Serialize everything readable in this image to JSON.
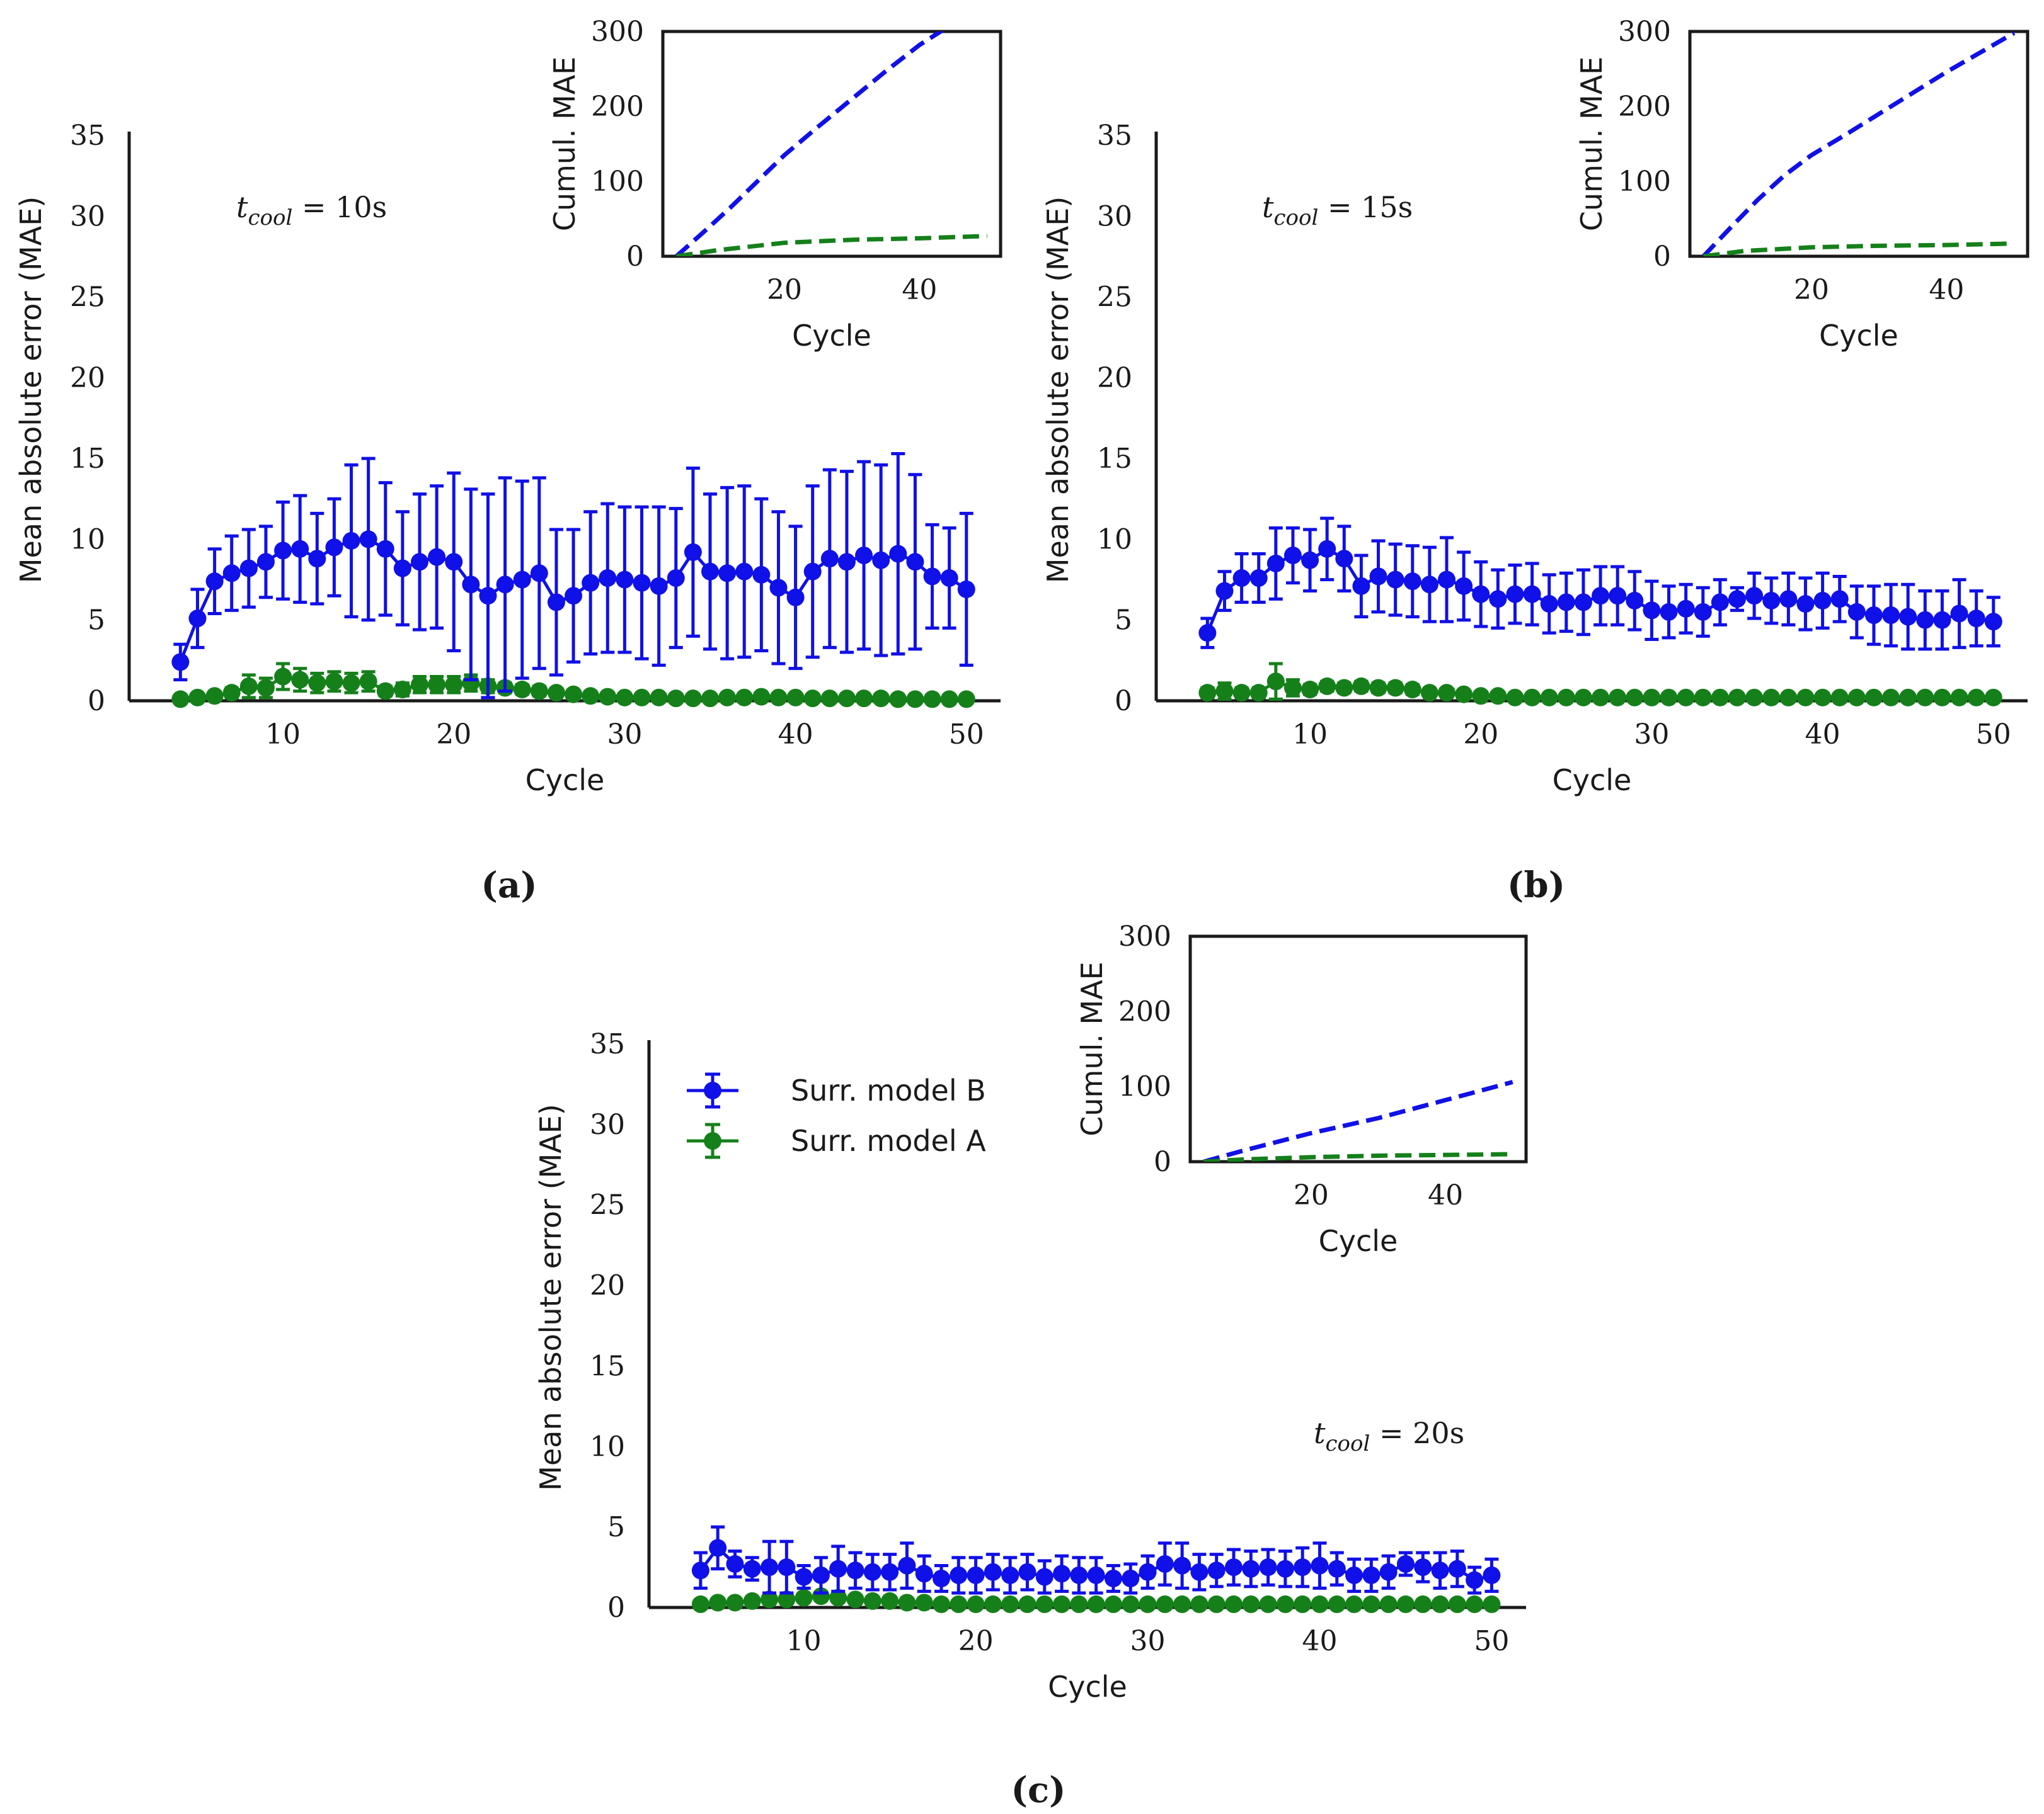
{
  "figure": {
    "panel_labels": [
      "(a)",
      "(b)",
      "(c)"
    ]
  },
  "legend": {
    "entries": [
      {
        "label": "Surr. model B",
        "color": "#1010e8"
      },
      {
        "label": "Surr. model A",
        "color": "#15801a"
      }
    ]
  },
  "chart_data": [
    {
      "panel": "(a)",
      "type": "line",
      "annotation": "t_cool = 10s",
      "xlabel": "Cycle",
      "ylabel": "Mean absolute error (MAE)",
      "xlim": [
        1,
        52
      ],
      "ylim": [
        0,
        35
      ],
      "xticks": [
        10,
        20,
        30,
        40,
        50
      ],
      "yticks": [
        0,
        5,
        10,
        15,
        20,
        25,
        30,
        35
      ],
      "x": [
        4,
        5,
        6,
        7,
        8,
        9,
        10,
        11,
        12,
        13,
        14,
        15,
        16,
        17,
        18,
        19,
        20,
        21,
        22,
        23,
        24,
        25,
        26,
        27,
        28,
        29,
        30,
        31,
        32,
        33,
        34,
        35,
        36,
        37,
        38,
        39,
        40,
        41,
        42,
        43,
        44,
        45,
        46,
        47,
        48,
        49,
        50
      ],
      "series": [
        {
          "name": "Surr. model B",
          "color": "#1010e8",
          "values": [
            2.4,
            5.1,
            7.4,
            7.9,
            8.2,
            8.6,
            9.3,
            9.4,
            8.8,
            9.5,
            9.9,
            10.0,
            9.4,
            8.2,
            8.6,
            8.9,
            8.6,
            7.2,
            6.5,
            7.2,
            7.5,
            7.9,
            6.1,
            6.5,
            7.3,
            7.6,
            7.5,
            7.3,
            7.1,
            7.6,
            9.2,
            8.0,
            7.9,
            8.0,
            7.8,
            7.0,
            6.4,
            8.0,
            8.8,
            8.6,
            9.0,
            8.7,
            9.1,
            8.6,
            7.7,
            7.6,
            6.9
          ],
          "errors": [
            1.1,
            1.8,
            2.0,
            2.3,
            2.4,
            2.2,
            3.0,
            3.3,
            2.8,
            3.0,
            4.7,
            5.0,
            4.1,
            3.5,
            4.2,
            4.4,
            5.5,
            5.9,
            6.3,
            6.6,
            6.1,
            5.9,
            4.5,
            4.1,
            4.4,
            4.6,
            4.5,
            4.7,
            4.9,
            4.3,
            5.2,
            4.8,
            5.3,
            5.3,
            4.7,
            4.7,
            4.4,
            5.3,
            5.5,
            5.6,
            5.8,
            5.9,
            6.2,
            5.4,
            3.2,
            3.1,
            4.7
          ]
        },
        {
          "name": "Surr. model A",
          "color": "#15801a",
          "values": [
            0.1,
            0.2,
            0.3,
            0.5,
            0.9,
            0.8,
            1.5,
            1.3,
            1.1,
            1.2,
            1.1,
            1.2,
            0.6,
            0.7,
            1.0,
            1.0,
            1.0,
            1.1,
            0.9,
            0.8,
            0.7,
            0.6,
            0.5,
            0.4,
            0.3,
            0.25,
            0.2,
            0.2,
            0.2,
            0.15,
            0.15,
            0.15,
            0.2,
            0.2,
            0.25,
            0.2,
            0.2,
            0.15,
            0.15,
            0.15,
            0.15,
            0.15,
            0.1,
            0.1,
            0.1,
            0.1,
            0.1
          ],
          "errors": [
            0.1,
            0.2,
            0.2,
            0.3,
            0.7,
            0.6,
            0.8,
            0.7,
            0.6,
            0.6,
            0.6,
            0.6,
            0.3,
            0.4,
            0.5,
            0.5,
            0.5,
            0.5,
            0.4,
            0.3,
            0.3,
            0.3,
            0.2,
            0.2,
            0.15,
            0.1,
            0.1,
            0.1,
            0.1,
            0.1,
            0.1,
            0.1,
            0.1,
            0.1,
            0.1,
            0.1,
            0.1,
            0.1,
            0.1,
            0.1,
            0.1,
            0.1,
            0.05,
            0.05,
            0.05,
            0.05,
            0.05
          ]
        }
      ],
      "inset": {
        "type": "line",
        "xlabel": "Cycle",
        "ylabel": "Cumul. MAE",
        "xlim": [
          2,
          52
        ],
        "ylim": [
          0,
          300
        ],
        "xticks": [
          20,
          40
        ],
        "yticks": [
          0,
          100,
          200,
          300
        ],
        "series": [
          {
            "name": "Surr. model B",
            "color": "#1010e8",
            "style": "dashed",
            "x": [
              4,
              8,
              12,
              16,
              20,
              25,
              30,
              35,
              40,
              44
            ],
            "values": [
              0,
              32,
              65,
              100,
              135,
              173,
              210,
              247,
              282,
              305
            ]
          },
          {
            "name": "Surr. model A",
            "color": "#15801a",
            "style": "dashed",
            "x": [
              4,
              10,
              20,
              30,
              40,
              50
            ],
            "values": [
              0,
              8,
              18,
              22,
              24,
              27
            ]
          }
        ]
      }
    },
    {
      "panel": "(b)",
      "type": "line",
      "annotation": "t_cool = 15s",
      "xlabel": "Cycle",
      "ylabel": "Mean absolute error (MAE)",
      "xlim": [
        1,
        52
      ],
      "ylim": [
        0,
        35
      ],
      "xticks": [
        10,
        20,
        30,
        40,
        50
      ],
      "yticks": [
        0,
        5,
        10,
        15,
        20,
        25,
        30,
        35
      ],
      "x": [
        4,
        5,
        6,
        7,
        8,
        9,
        10,
        11,
        12,
        13,
        14,
        15,
        16,
        17,
        18,
        19,
        20,
        21,
        22,
        23,
        24,
        25,
        26,
        27,
        28,
        29,
        30,
        31,
        32,
        33,
        34,
        35,
        36,
        37,
        38,
        39,
        40,
        41,
        42,
        43,
        44,
        45,
        46,
        47,
        48,
        49,
        50
      ],
      "series": [
        {
          "name": "Surr. model B",
          "color": "#1010e8",
          "values": [
            4.2,
            6.8,
            7.6,
            7.6,
            8.5,
            9.0,
            8.7,
            9.4,
            8.8,
            7.1,
            7.7,
            7.5,
            7.4,
            7.2,
            7.5,
            7.1,
            6.6,
            6.3,
            6.6,
            6.6,
            6.0,
            6.1,
            6.1,
            6.5,
            6.5,
            6.2,
            5.6,
            5.5,
            5.7,
            5.5,
            6.1,
            6.3,
            6.5,
            6.2,
            6.3,
            6.0,
            6.2,
            6.3,
            5.5,
            5.3,
            5.3,
            5.2,
            5.0,
            5.0,
            5.4,
            5.1,
            4.9
          ],
          "errors": [
            0.9,
            1.2,
            1.5,
            1.5,
            2.2,
            1.7,
            1.9,
            1.9,
            2.0,
            1.9,
            2.2,
            2.2,
            2.2,
            2.3,
            2.6,
            2.1,
            2.0,
            1.8,
            1.8,
            1.9,
            1.8,
            1.8,
            2.0,
            1.8,
            1.8,
            1.8,
            1.8,
            1.6,
            1.5,
            1.5,
            1.4,
            0.7,
            1.4,
            1.4,
            1.6,
            1.6,
            1.7,
            1.4,
            1.6,
            1.8,
            1.9,
            2.0,
            1.8,
            1.8,
            2.1,
            1.7,
            1.5
          ]
        },
        {
          "name": "Surr. model A",
          "color": "#15801a",
          "values": [
            0.5,
            0.6,
            0.5,
            0.5,
            1.2,
            0.8,
            0.7,
            0.9,
            0.8,
            0.9,
            0.8,
            0.8,
            0.7,
            0.5,
            0.5,
            0.4,
            0.3,
            0.3,
            0.2,
            0.2,
            0.2,
            0.2,
            0.2,
            0.2,
            0.2,
            0.2,
            0.2,
            0.2,
            0.2,
            0.2,
            0.2,
            0.2,
            0.2,
            0.2,
            0.2,
            0.2,
            0.2,
            0.2,
            0.2,
            0.2,
            0.2,
            0.2,
            0.2,
            0.2,
            0.2,
            0.2,
            0.2
          ],
          "errors": [
            0.3,
            0.5,
            0.3,
            0.3,
            1.1,
            0.5,
            0.3,
            0.3,
            0.3,
            0.3,
            0.3,
            0.3,
            0.3,
            0.2,
            0.1,
            0.1,
            0.1,
            0.1,
            0.1,
            0.1,
            0.1,
            0.1,
            0.1,
            0.1,
            0.1,
            0.1,
            0.1,
            0.1,
            0.1,
            0.1,
            0.1,
            0.1,
            0.1,
            0.1,
            0.1,
            0.1,
            0.1,
            0.1,
            0.1,
            0.1,
            0.1,
            0.1,
            0.1,
            0.1,
            0.1,
            0.1,
            0.1
          ]
        }
      ],
      "inset": {
        "type": "line",
        "xlabel": "Cycle",
        "ylabel": "Cumul. MAE",
        "xlim": [
          2,
          52
        ],
        "ylim": [
          0,
          300
        ],
        "xticks": [
          20,
          40
        ],
        "yticks": [
          0,
          100,
          200,
          300
        ],
        "series": [
          {
            "name": "Surr. model B",
            "color": "#1010e8",
            "style": "dashed",
            "x": [
              4,
              8,
              12,
              16,
              20,
              25,
              30,
              35,
              40,
              45,
              50
            ],
            "values": [
              0,
              38,
              75,
              108,
              135,
              162,
              190,
              218,
              246,
              272,
              298
            ]
          },
          {
            "name": "Surr. model A",
            "color": "#15801a",
            "style": "dashed",
            "x": [
              4,
              10,
              20,
              30,
              40,
              50
            ],
            "values": [
              0,
              7,
              12,
              14,
              15,
              17
            ]
          }
        ]
      }
    },
    {
      "panel": "(c)",
      "type": "line",
      "annotation": "t_cool = 20s",
      "xlabel": "Cycle",
      "ylabel": "Mean absolute error (MAE)",
      "xlim": [
        1,
        52
      ],
      "ylim": [
        0,
        35
      ],
      "xticks": [
        10,
        20,
        30,
        40,
        50
      ],
      "yticks": [
        0,
        5,
        10,
        15,
        20,
        25,
        30,
        35
      ],
      "x": [
        4,
        5,
        6,
        7,
        8,
        9,
        10,
        11,
        12,
        13,
        14,
        15,
        16,
        17,
        18,
        19,
        20,
        21,
        22,
        23,
        24,
        25,
        26,
        27,
        28,
        29,
        30,
        31,
        32,
        33,
        34,
        35,
        36,
        37,
        38,
        39,
        40,
        41,
        42,
        43,
        44,
        45,
        46,
        47,
        48,
        49,
        50
      ],
      "series": [
        {
          "name": "Surr. model B",
          "color": "#1010e8",
          "values": [
            2.3,
            3.7,
            2.7,
            2.4,
            2.5,
            2.5,
            1.9,
            2.0,
            2.4,
            2.3,
            2.2,
            2.2,
            2.6,
            2.1,
            1.8,
            2.0,
            2.0,
            2.2,
            2.0,
            2.2,
            1.9,
            2.1,
            2.0,
            2.0,
            1.8,
            1.8,
            2.2,
            2.7,
            2.6,
            2.2,
            2.3,
            2.5,
            2.4,
            2.5,
            2.4,
            2.5,
            2.6,
            2.4,
            2.0,
            2.0,
            2.2,
            2.7,
            2.5,
            2.3,
            2.4,
            1.7,
            2.0
          ],
          "errors": [
            1.1,
            1.3,
            0.8,
            0.7,
            1.6,
            1.6,
            0.7,
            1.1,
            1.4,
            1.1,
            1.1,
            1.1,
            1.4,
            1.1,
            0.8,
            1.1,
            1.1,
            1.1,
            1.1,
            1.1,
            1.0,
            1.1,
            1.1,
            1.1,
            0.8,
            0.9,
            1.0,
            1.3,
            1.4,
            1.1,
            1.0,
            1.1,
            1.1,
            1.1,
            1.1,
            1.2,
            1.4,
            1.0,
            1.0,
            1.0,
            1.0,
            0.7,
            0.9,
            1.1,
            1.1,
            0.8,
            1.0
          ]
        },
        {
          "name": "Surr. model A",
          "color": "#15801a",
          "values": [
            0.2,
            0.3,
            0.3,
            0.4,
            0.5,
            0.5,
            0.6,
            0.7,
            0.6,
            0.5,
            0.4,
            0.4,
            0.3,
            0.3,
            0.2,
            0.2,
            0.2,
            0.2,
            0.2,
            0.2,
            0.2,
            0.2,
            0.2,
            0.2,
            0.2,
            0.2,
            0.2,
            0.2,
            0.2,
            0.2,
            0.2,
            0.2,
            0.2,
            0.2,
            0.2,
            0.2,
            0.2,
            0.2,
            0.2,
            0.2,
            0.2,
            0.2,
            0.2,
            0.2,
            0.2,
            0.2,
            0.2
          ],
          "errors": [
            0.1,
            0.1,
            0.1,
            0.1,
            0.1,
            0.1,
            0.2,
            0.2,
            0.2,
            0.1,
            0.1,
            0.1,
            0.1,
            0.1,
            0.1,
            0.1,
            0.1,
            0.1,
            0.1,
            0.1,
            0.1,
            0.1,
            0.1,
            0.1,
            0.1,
            0.1,
            0.1,
            0.1,
            0.1,
            0.1,
            0.1,
            0.1,
            0.1,
            0.1,
            0.1,
            0.1,
            0.1,
            0.1,
            0.1,
            0.1,
            0.1,
            0.1,
            0.1,
            0.1,
            0.1,
            0.1,
            0.1
          ]
        }
      ],
      "inset": {
        "type": "line",
        "xlabel": "Cycle",
        "ylabel": "Cumul. MAE",
        "xlim": [
          2,
          52
        ],
        "ylim": [
          0,
          300
        ],
        "xticks": [
          20,
          40
        ],
        "yticks": [
          0,
          100,
          200,
          300
        ],
        "series": [
          {
            "name": "Surr. model B",
            "color": "#1010e8",
            "style": "dashed",
            "x": [
              4,
              10,
              20,
              30,
              40,
              50
            ],
            "values": [
              0,
              15,
              38,
              58,
              82,
              106
            ]
          },
          {
            "name": "Surr. model A",
            "color": "#15801a",
            "style": "dashed",
            "x": [
              4,
              10,
              20,
              30,
              40,
              50
            ],
            "values": [
              0,
              3,
              6,
              8,
              9,
              10
            ]
          }
        ]
      }
    }
  ]
}
